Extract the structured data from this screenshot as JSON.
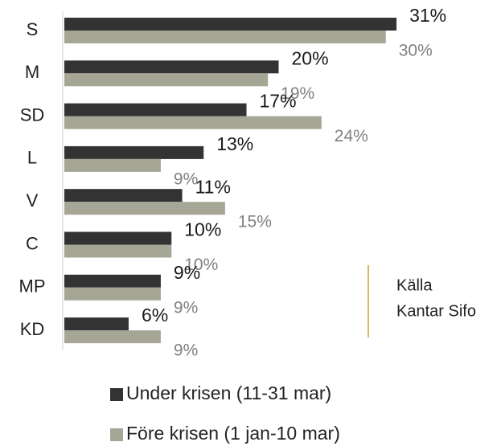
{
  "chart_data": {
    "type": "hbar",
    "categories": [
      "S",
      "M",
      "SD",
      "L",
      "V",
      "C",
      "MP",
      "KD"
    ],
    "series": [
      {
        "name": "Under krisen (11-31 mar)",
        "color": "#333333",
        "values": [
          31,
          20,
          17,
          13,
          11,
          10,
          9,
          6
        ],
        "value_labels": [
          "31%",
          "20%",
          "17%",
          "13%",
          "11%",
          "10%",
          "9%",
          "6%"
        ]
      },
      {
        "name": "Före krisen (1 jan-10 mar)",
        "color": "#a6a697",
        "values": [
          30,
          19,
          24,
          9,
          15,
          10,
          9,
          9
        ],
        "value_labels": [
          "30%",
          "19%",
          "24%",
          "9%",
          "15%",
          "10%",
          "9%",
          "9%"
        ]
      }
    ],
    "xlim": [
      0,
      40
    ],
    "source": {
      "label": "Källa",
      "text": "Kantar Sifo"
    }
  }
}
